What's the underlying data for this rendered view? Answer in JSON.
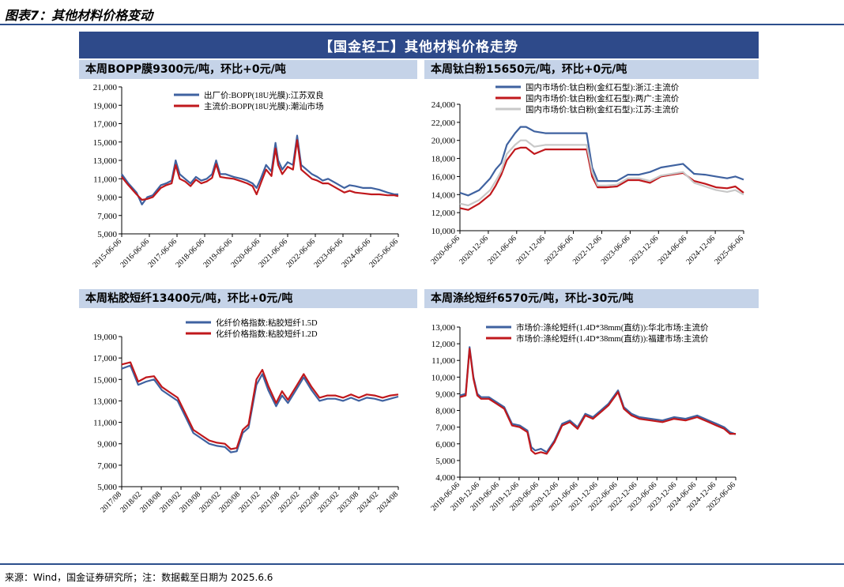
{
  "figure": {
    "title": "图表7：其他材料价格变动",
    "banner": "【国金轻工】其他材料价格走势",
    "source": "来源：Wind，国金证券研究所；注：数据截至日期为 2025.6.6"
  },
  "panels": [
    {
      "header": "本周BOPP膜9300元/吨，环比+0元/吨"
    },
    {
      "header": "本周钛白粉15650元/吨，环比+0元/吨"
    },
    {
      "header": "本周粘胶短纤13400元/吨，环比+0元/吨"
    },
    {
      "header": "本周涤纶短纤6570元/吨，环比-30元/吨"
    }
  ],
  "chart_data": [
    {
      "type": "line",
      "title": "本周BOPP膜9300元/吨，环比+0元/吨",
      "ylim": [
        5000,
        21000
      ],
      "yticks": [
        "5,000",
        "7,000",
        "9,000",
        "11,000",
        "13,000",
        "15,000",
        "17,000",
        "19,000",
        "21,000"
      ],
      "xticks": [
        "2015-06-06",
        "2016-06-06",
        "2017-06-06",
        "2018-06-06",
        "2019-06-06",
        "2020-06-06",
        "2021-06-06",
        "2022-06-06",
        "2023-06-06",
        "2024-06-06",
        "2025-06-06"
      ],
      "x_range": [
        2015.35,
        2025.6
      ],
      "series": [
        {
          "name": "出厂价:BOPP(18U光膜):江苏双良",
          "color": "#3f62a0",
          "x": [
            2015.35,
            2015.6,
            2015.9,
            2016.1,
            2016.3,
            2016.5,
            2016.8,
            2017.0,
            2017.2,
            2017.35,
            2017.5,
            2017.7,
            2017.9,
            2018.1,
            2018.3,
            2018.5,
            2018.7,
            2018.85,
            2019.0,
            2019.2,
            2019.5,
            2019.8,
            2020.0,
            2020.2,
            2020.35,
            2020.5,
            2020.7,
            2020.9,
            2021.05,
            2021.15,
            2021.3,
            2021.5,
            2021.7,
            2021.85,
            2022.0,
            2022.2,
            2022.4,
            2022.6,
            2022.8,
            2023.0,
            2023.3,
            2023.6,
            2023.8,
            2024.0,
            2024.3,
            2024.6,
            2024.9,
            2025.2,
            2025.45,
            2025.6
          ],
          "y": [
            11500,
            10500,
            9500,
            8200,
            9000,
            9200,
            10300,
            10500,
            10800,
            13000,
            11500,
            11000,
            10500,
            11200,
            10800,
            11000,
            11500,
            13000,
            11500,
            11500,
            11200,
            11000,
            10800,
            10500,
            10000,
            11000,
            12500,
            11800,
            14900,
            13000,
            12000,
            12800,
            12500,
            15700,
            12500,
            12000,
            11500,
            11200,
            10800,
            11000,
            10500,
            10000,
            10300,
            10200,
            10000,
            10000,
            9800,
            9500,
            9300,
            9300
          ]
        },
        {
          "name": "主流价:BOPP(18U光膜):潮汕市场",
          "color": "#c0181c",
          "x": [
            2015.35,
            2015.6,
            2015.9,
            2016.1,
            2016.3,
            2016.5,
            2016.8,
            2017.0,
            2017.2,
            2017.35,
            2017.5,
            2017.7,
            2017.9,
            2018.1,
            2018.3,
            2018.5,
            2018.7,
            2018.85,
            2019.0,
            2019.2,
            2019.5,
            2019.8,
            2020.0,
            2020.2,
            2020.35,
            2020.5,
            2020.7,
            2020.9,
            2021.05,
            2021.15,
            2021.3,
            2021.5,
            2021.7,
            2021.85,
            2022.0,
            2022.2,
            2022.4,
            2022.6,
            2022.8,
            2023.0,
            2023.3,
            2023.6,
            2023.8,
            2024.0,
            2024.3,
            2024.6,
            2024.9,
            2025.2,
            2025.45,
            2025.6
          ],
          "y": [
            11200,
            10300,
            9300,
            8700,
            8800,
            9000,
            10000,
            10300,
            10500,
            12500,
            11000,
            10700,
            10200,
            10900,
            10500,
            10700,
            11100,
            12600,
            11200,
            11100,
            11000,
            10700,
            10500,
            10200,
            9300,
            10500,
            12000,
            11300,
            14300,
            12500,
            11500,
            12300,
            12000,
            15200,
            12000,
            11500,
            11000,
            10800,
            10500,
            10500,
            10000,
            9500,
            9700,
            9500,
            9400,
            9300,
            9300,
            9200,
            9200,
            9100
          ]
        }
      ]
    },
    {
      "type": "line",
      "title": "本周钛白粉15650元/吨，环比+0元/吨",
      "ylim": [
        10000,
        24000
      ],
      "yticks": [
        "10,000",
        "12,000",
        "14,000",
        "16,000",
        "18,000",
        "20,000",
        "22,000",
        "24,000"
      ],
      "xticks": [
        "2020-06-06",
        "2020-12-06",
        "2021-06-06",
        "2021-12-06",
        "2022-06-06",
        "2022-12-06",
        "2023-06-06",
        "2023-12-06",
        "2024-06-06",
        "2024-12-06",
        "2025-06-06"
      ],
      "x_range": [
        2020.35,
        2025.5
      ],
      "series": [
        {
          "name": "国内市场价:钛白粉(金红石型):浙江:主流价",
          "color": "#3f62a0",
          "x": [
            2020.35,
            2020.5,
            2020.7,
            2020.9,
            2021.0,
            2021.1,
            2021.2,
            2021.35,
            2021.45,
            2021.55,
            2021.7,
            2021.9,
            2022.1,
            2022.3,
            2022.5,
            2022.65,
            2022.75,
            2022.85,
            2023.0,
            2023.2,
            2023.4,
            2023.6,
            2023.8,
            2024.0,
            2024.2,
            2024.4,
            2024.6,
            2024.8,
            2025.0,
            2025.2,
            2025.35,
            2025.5
          ],
          "y": [
            14200,
            13900,
            14500,
            15800,
            16800,
            17500,
            19500,
            20800,
            21500,
            21500,
            21000,
            20800,
            20800,
            20800,
            20800,
            20800,
            17000,
            15500,
            15500,
            15500,
            16200,
            16200,
            16500,
            17000,
            17200,
            17400,
            16300,
            16200,
            16000,
            15800,
            16000,
            15650
          ]
        },
        {
          "name": "国内市场价:钛白粉(金红石型):两广:主流价",
          "color": "#c0181c",
          "x": [
            2020.35,
            2020.5,
            2020.7,
            2020.9,
            2021.0,
            2021.1,
            2021.2,
            2021.35,
            2021.45,
            2021.55,
            2021.7,
            2021.9,
            2022.1,
            2022.3,
            2022.5,
            2022.65,
            2022.75,
            2022.85,
            2023.0,
            2023.2,
            2023.4,
            2023.6,
            2023.8,
            2024.0,
            2024.2,
            2024.4,
            2024.6,
            2024.8,
            2025.0,
            2025.2,
            2025.35,
            2025.5
          ],
          "y": [
            12500,
            12300,
            13000,
            14000,
            15000,
            16200,
            17800,
            19000,
            19200,
            19200,
            18500,
            19000,
            19000,
            19000,
            19000,
            19000,
            16000,
            14800,
            14800,
            14900,
            15600,
            15600,
            15300,
            16000,
            16200,
            16400,
            15500,
            15200,
            14800,
            14700,
            14900,
            14200
          ]
        },
        {
          "name": "国内市场价:钛白粉(金红石型):江苏:主流价",
          "color": "#c8c8c8",
          "x": [
            2020.35,
            2020.5,
            2020.7,
            2020.9,
            2021.0,
            2021.1,
            2021.2,
            2021.35,
            2021.45,
            2021.55,
            2021.7,
            2021.9,
            2022.1,
            2022.3,
            2022.5,
            2022.65,
            2022.75,
            2022.85,
            2023.0,
            2023.2,
            2023.4,
            2023.6,
            2023.8,
            2024.0,
            2024.2,
            2024.4,
            2024.6,
            2024.8,
            2025.0,
            2025.2,
            2025.35,
            2025.5
          ],
          "y": [
            13000,
            12800,
            13400,
            14500,
            15500,
            16600,
            18500,
            19500,
            20000,
            20000,
            19300,
            19500,
            19500,
            19500,
            19500,
            19500,
            16500,
            15000,
            15000,
            15100,
            15800,
            15800,
            15500,
            16100,
            16300,
            16500,
            15300,
            14900,
            14500,
            14300,
            14500,
            14000
          ]
        }
      ]
    },
    {
      "type": "line",
      "title": "本周粘胶短纤13400元/吨，环比+0元/吨",
      "ylim": [
        5000,
        19000
      ],
      "yticks": [
        "5,000",
        "7,000",
        "9,000",
        "11,000",
        "13,000",
        "15,000",
        "17,000",
        "19,000"
      ],
      "xticks": [
        "2017/08",
        "2018/02",
        "2018/08",
        "2019/02",
        "2019/08",
        "2020/02",
        "2020/08",
        "2021/02",
        "2021/08",
        "2022/02",
        "2022/08",
        "2023/02",
        "2023/08",
        "2024/02",
        "2024/08"
      ],
      "x_range": [
        2017.58,
        2024.6
      ],
      "series": [
        {
          "name": "化纤价格指数:粘胶短纤1.5D",
          "color": "#3f62a0",
          "x": [
            2017.58,
            2017.8,
            2018.0,
            2018.2,
            2018.4,
            2018.6,
            2018.8,
            2019.0,
            2019.2,
            2019.4,
            2019.6,
            2019.8,
            2020.0,
            2020.2,
            2020.35,
            2020.5,
            2020.65,
            2020.8,
            2021.0,
            2021.15,
            2021.3,
            2021.5,
            2021.65,
            2021.8,
            2022.0,
            2022.2,
            2022.4,
            2022.6,
            2022.8,
            2023.0,
            2023.2,
            2023.4,
            2023.6,
            2023.8,
            2024.0,
            2024.2,
            2024.4,
            2024.6
          ],
          "y": [
            16000,
            16300,
            14500,
            14800,
            15000,
            14000,
            13500,
            13000,
            11500,
            10000,
            9500,
            9000,
            8800,
            8700,
            8200,
            8300,
            10000,
            10500,
            14500,
            15500,
            14000,
            12500,
            13500,
            12800,
            14000,
            15200,
            14000,
            13000,
            13200,
            13200,
            13000,
            13300,
            13000,
            13300,
            13200,
            13000,
            13200,
            13400
          ]
        },
        {
          "name": "化纤价格指数:粘胶短纤1.2D",
          "color": "#c0181c",
          "x": [
            2017.58,
            2017.8,
            2018.0,
            2018.2,
            2018.4,
            2018.6,
            2018.8,
            2019.0,
            2019.2,
            2019.4,
            2019.6,
            2019.8,
            2020.0,
            2020.2,
            2020.35,
            2020.5,
            2020.65,
            2020.8,
            2021.0,
            2021.15,
            2021.3,
            2021.5,
            2021.65,
            2021.8,
            2022.0,
            2022.2,
            2022.4,
            2022.6,
            2022.8,
            2023.0,
            2023.2,
            2023.4,
            2023.6,
            2023.8,
            2024.0,
            2024.2,
            2024.4,
            2024.6
          ],
          "y": [
            16400,
            16600,
            14800,
            15200,
            15300,
            14300,
            13800,
            13300,
            11800,
            10300,
            9800,
            9300,
            9100,
            9000,
            8500,
            8600,
            10300,
            10800,
            15000,
            15900,
            14400,
            12800,
            13900,
            13100,
            14300,
            15500,
            14300,
            13300,
            13500,
            13500,
            13300,
            13600,
            13300,
            13600,
            13500,
            13300,
            13500,
            13600
          ]
        }
      ]
    },
    {
      "type": "line",
      "title": "本周涤纶短纤6570元/吨，环比-30元/吨",
      "ylim": [
        4000,
        13000
      ],
      "yticks": [
        "4,000",
        "5,000",
        "6,000",
        "7,000",
        "8,000",
        "9,000",
        "10,000",
        "11,000",
        "12,000",
        "13,000"
      ],
      "xticks": [
        "2018-06-06",
        "2018-12-06",
        "2019-06-06",
        "2019-12-06",
        "2020-06-06",
        "2020-12-06",
        "2021-06-06",
        "2021-12-06",
        "2022-06-06",
        "2022-12-06",
        "2023-06-06",
        "2023-12-06",
        "2024-06-06",
        "2024-12-06",
        "2025-06-06"
      ],
      "x_range": [
        2018.35,
        2025.5
      ],
      "series": [
        {
          "name": "市场价:涤纶短纤(1.4D*38mm(直纺)):华北市场:主流价",
          "color": "#3f62a0",
          "x": [
            2018.35,
            2018.5,
            2018.6,
            2018.7,
            2018.8,
            2018.9,
            2019.1,
            2019.3,
            2019.5,
            2019.7,
            2019.9,
            2020.1,
            2020.2,
            2020.3,
            2020.45,
            2020.6,
            2020.8,
            2021.0,
            2021.2,
            2021.4,
            2021.6,
            2021.8,
            2022.0,
            2022.2,
            2022.45,
            2022.6,
            2022.8,
            2023.0,
            2023.3,
            2023.6,
            2023.9,
            2024.2,
            2024.5,
            2024.8,
            2025.0,
            2025.2,
            2025.35,
            2025.5
          ],
          "y": [
            8900,
            9000,
            11800,
            10000,
            9000,
            8800,
            8800,
            8500,
            8200,
            7200,
            7100,
            6800,
            5800,
            5600,
            5700,
            5500,
            6200,
            7200,
            7400,
            7000,
            7800,
            7600,
            8000,
            8400,
            9200,
            8200,
            7800,
            7600,
            7500,
            7400,
            7600,
            7500,
            7700,
            7400,
            7200,
            7000,
            6700,
            6570
          ]
        },
        {
          "name": "市场价:涤纶短纤(1.4D*38mm(直纺)):福建市场:主流价",
          "color": "#c0181c",
          "x": [
            2018.35,
            2018.5,
            2018.6,
            2018.7,
            2018.8,
            2018.9,
            2019.1,
            2019.3,
            2019.5,
            2019.7,
            2019.9,
            2020.1,
            2020.2,
            2020.3,
            2020.45,
            2020.6,
            2020.8,
            2021.0,
            2021.2,
            2021.4,
            2021.6,
            2021.8,
            2022.0,
            2022.2,
            2022.45,
            2022.6,
            2022.8,
            2023.0,
            2023.3,
            2023.6,
            2023.9,
            2024.2,
            2024.5,
            2024.8,
            2025.0,
            2025.2,
            2025.35,
            2025.5
          ],
          "y": [
            8800,
            8900,
            11700,
            9900,
            8900,
            8700,
            8700,
            8400,
            8100,
            7100,
            7000,
            6700,
            5600,
            5400,
            5500,
            5400,
            6100,
            7100,
            7300,
            6900,
            7700,
            7500,
            7900,
            8300,
            9100,
            8100,
            7700,
            7500,
            7400,
            7300,
            7500,
            7400,
            7600,
            7300,
            7100,
            6900,
            6600,
            6600
          ]
        }
      ]
    }
  ]
}
